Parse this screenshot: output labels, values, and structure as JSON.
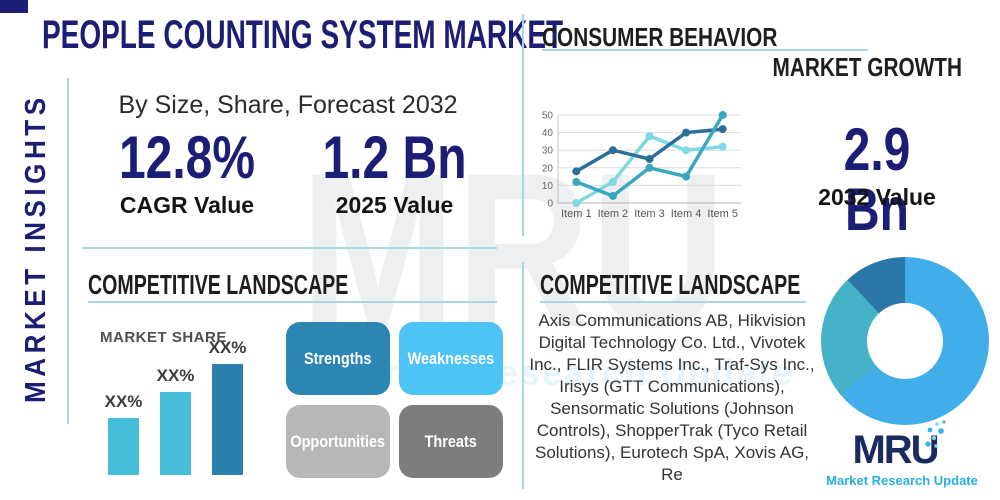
{
  "colors": {
    "navy": "#1c1d75",
    "heading": "#1e1e1e",
    "accent_line": "#a9d6e2",
    "tagline": "#29aee3",
    "watermark_gray": "#edeff1",
    "watermark_blue": "#e8f4fb"
  },
  "sidebar": {
    "label": "MARKET INSIGHTS"
  },
  "header": {
    "title": "PEOPLE COUNTING SYSTEM MARKET",
    "subtitle": "By Size, Share, Forecast 2032"
  },
  "stats": {
    "cagr": {
      "value": "12.8%",
      "label": "CAGR Value"
    },
    "value_2025": {
      "value": "1.2 Bn",
      "label": "2025 Value"
    },
    "value_2032": {
      "value": "2.9 Bn",
      "label": "2032 Value"
    }
  },
  "consumer_behavior": {
    "title": "CONSUMER BEHAVIOR",
    "subtitle": "MARKET GROWTH"
  },
  "competitive_left": {
    "title": "COMPETITIVE LANDSCAPE",
    "market_share_label": "MARKET SHARE",
    "swot": [
      {
        "label": "Strengths",
        "color": "#2b86b4"
      },
      {
        "label": "Weaknesses",
        "color": "#4dc3f6"
      },
      {
        "label": "Opportunities",
        "color": "#b7b7b7"
      },
      {
        "label": "Threats",
        "color": "#7d7d7d"
      }
    ]
  },
  "competitive_right": {
    "title": "COMPETITIVE LANDSCAPE",
    "companies": "Axis Communications AB, Hikvision Digital Technology Co. Ltd., Vivotek Inc., FLIR Systems Inc., Traf-Sys Inc., Irisys (GTT Communications), Sensormatic Solutions (Johnson Controls), ShopperTrak (Tyco Retail Solutions), Eurotech SpA, Xovis AG, Re"
  },
  "logo": {
    "text": "MRU",
    "tagline": "Market Research Update"
  },
  "watermark": {
    "line1": "MRU",
    "line2": "Market Research Update"
  },
  "chart_data": [
    {
      "type": "line",
      "title": "MARKET GROWTH",
      "x": [
        "Item 1",
        "Item 2",
        "Item 3",
        "Item 4",
        "Item 5"
      ],
      "series": [
        {
          "name": "dark-blue",
          "color": "#2d6f99",
          "values": [
            18,
            30,
            25,
            40,
            42
          ]
        },
        {
          "name": "teal",
          "color": "#38a7bd",
          "values": [
            12,
            4,
            20,
            15,
            50
          ]
        },
        {
          "name": "light-cyan",
          "color": "#7fd9e0",
          "values": [
            0,
            12,
            38,
            30,
            32
          ]
        }
      ],
      "ylim": [
        0,
        50
      ],
      "yticks": [
        0,
        10,
        20,
        30,
        40,
        50
      ],
      "grid": true,
      "legend": false
    },
    {
      "type": "bar",
      "title": "MARKET SHARE",
      "labels": [
        "XX%",
        "XX%",
        "XX%"
      ],
      "values": [
        31,
        45,
        60
      ],
      "colors": [
        "#46bdd9",
        "#46bdd9",
        "#2b7fae"
      ],
      "ylim": [
        0,
        65
      ]
    },
    {
      "type": "donut",
      "slices": [
        {
          "value": 64,
          "color": "#41aeea"
        },
        {
          "value": 24,
          "color": "#46b2c8"
        },
        {
          "value": 12,
          "color": "#2c77a9"
        }
      ]
    }
  ]
}
